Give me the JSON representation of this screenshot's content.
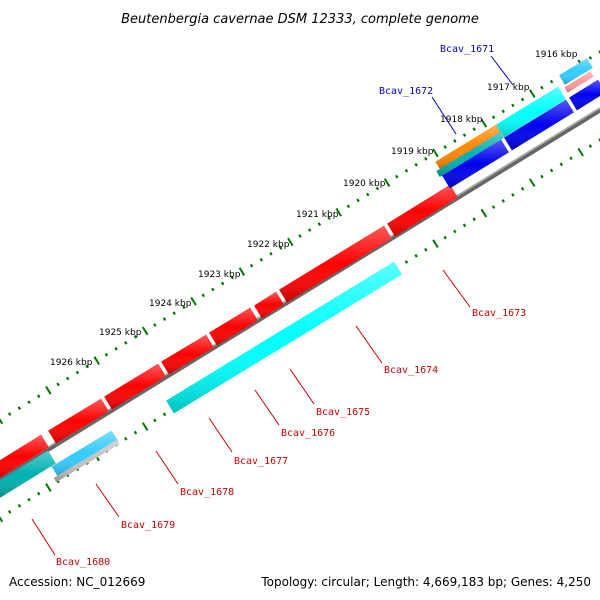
{
  "title": "Beutenbergia cavernae DSM 12333, complete genome",
  "ticks": [
    "1916 kbp",
    "1917 kbp",
    "1918 kbp",
    "1919 kbp",
    "1920 kbp",
    "1921 kbp",
    "1922 kbp",
    "1923 kbp",
    "1924 kbp",
    "1925 kbp",
    "1926 kbp"
  ],
  "genes_forward": [
    "Bcav_1671",
    "Bcav_1672"
  ],
  "genes_reverse": [
    "Bcav_1673",
    "Bcav_1674",
    "Bcav_1675",
    "Bcav_1676",
    "Bcav_1677",
    "Bcav_1678",
    "Bcav_1679",
    "Bcav_1680"
  ],
  "footer": {
    "accession": "Accession: NC_012669",
    "summary": "Topology: circular; Length: 4,669,183 bp; Genes: 4,250"
  },
  "colors": {
    "forward_label": "#0000cc",
    "reverse_label": "#cc0000",
    "red": "#ff0000",
    "cyan": "#00ffff",
    "blue": "#0000ee",
    "teal": "#00b0b0",
    "orange": "#ff8800",
    "pink": "#ff9999",
    "lightblue": "#33ccff",
    "gray": "#c0c0c0",
    "tick_green": "#007700",
    "backbone": "#888888",
    "leader_forward": "#0000cc",
    "leader_reverse": "#cc0000"
  }
}
